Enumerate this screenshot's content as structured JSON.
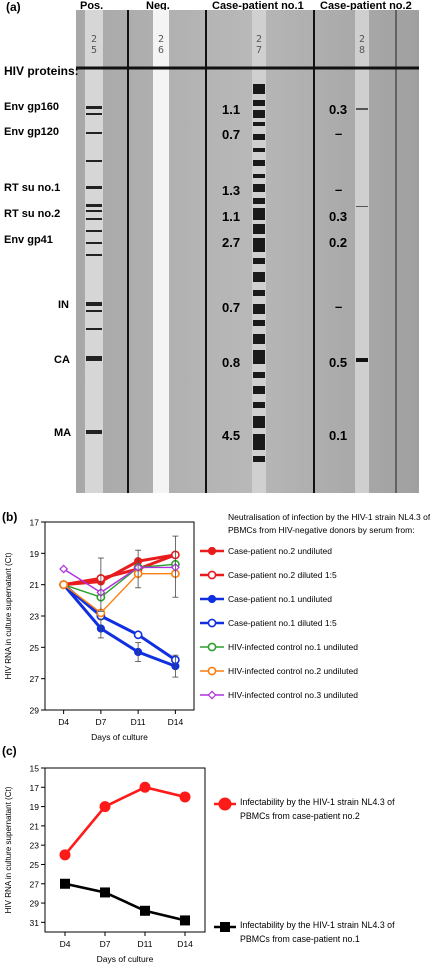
{
  "panel_a": {
    "letter": "(a)",
    "lane_headers": [
      "Pos.",
      "Neg.",
      "Case-patient no.1",
      "Case-patient no.2"
    ],
    "strip_numbers": [
      [
        "2",
        "5"
      ],
      [
        "2",
        "6"
      ],
      [
        "2",
        "7"
      ],
      [
        "2",
        "8"
      ]
    ],
    "proteins_title": "HIV proteins:",
    "proteins": [
      {
        "label": "Env gp160",
        "p1": "1.1",
        "p2": "0.3"
      },
      {
        "label": "Env gp120",
        "p1": "0.7",
        "p2": "–"
      },
      {
        "label": "RT su no.1",
        "p1": "1.3",
        "p2": "–"
      },
      {
        "label": "RT su no.2",
        "p1": "1.1",
        "p2": "0.3"
      },
      {
        "label": "Env gp41",
        "p1": "2.7",
        "p2": "0.2"
      },
      {
        "label": "IN",
        "p1": "0.7",
        "p2": "–"
      },
      {
        "label": "CA",
        "p1": "0.8",
        "p2": "0.5"
      },
      {
        "label": "MA",
        "p1": "4.5",
        "p2": "0.1"
      }
    ]
  },
  "panel_b": {
    "letter": "(b)",
    "legend_title": [
      "Neutralisation of infection by the HIV-1 strain NL4.3 of",
      "PBMCs from HIV-negative donors by serum from:"
    ],
    "chart_data": {
      "type": "line",
      "categories": [
        "D4",
        "D7",
        "D11",
        "D14"
      ],
      "xlabel": "Days of culture",
      "ylabel": "HIV RNA in culture supernatant (Ct)",
      "ylim": [
        17,
        29
      ],
      "y_inverted": true,
      "yticks": [
        "17",
        "19",
        "21",
        "23",
        "25",
        "27",
        "29"
      ],
      "legend_placement": "right",
      "series": [
        {
          "name": "Case-patient no.2 undiluted",
          "values": [
            21,
            20.8,
            19.5,
            19.1
          ],
          "color": "#e81c1c",
          "marker": "filled",
          "thick": true
        },
        {
          "name": "Case-patient no.2 diluted 1:5",
          "values": [
            21,
            20.6,
            20,
            19.1
          ],
          "color": "#e81c1c",
          "marker": "open",
          "thick": true
        },
        {
          "name": "Case-patient no.1 undiluted",
          "values": [
            21,
            23.8,
            25.3,
            26.2
          ],
          "color": "#1030e0",
          "marker": "filled",
          "thick": true
        },
        {
          "name": "Case-patient no.1 diluted 1:5",
          "values": [
            21,
            23,
            24.2,
            25.8
          ],
          "color": "#1030e0",
          "marker": "open",
          "thick": true
        },
        {
          "name": "HIV-infected control no.1 undiluted",
          "values": [
            21,
            21.8,
            19.9,
            19.7
          ],
          "color": "#2ca02c",
          "marker": "open",
          "thick": false
        },
        {
          "name": "HIV-infected control no.2 undiluted",
          "values": [
            21,
            22.8,
            20.3,
            20.3
          ],
          "color": "#ff7f0e",
          "marker": "open",
          "thick": false
        },
        {
          "name": "HIV-infected control no.3 undiluted",
          "values": [
            20,
            21.5,
            19.9,
            19.9
          ],
          "color": "#b030e0",
          "marker": "diamond",
          "thick": false
        }
      ]
    }
  },
  "panel_c": {
    "letter": "(c)",
    "chart_data": {
      "type": "line",
      "categories": [
        "D4",
        "D7",
        "D11",
        "D14"
      ],
      "xlabel": "Days of culture",
      "ylabel": "HIV RNA in culture supernatant (Ct)",
      "ylim": [
        15,
        32
      ],
      "y_inverted": true,
      "yticks": [
        "15",
        "17",
        "19",
        "21",
        "23",
        "25",
        "27",
        "29",
        "31"
      ],
      "legend_placement": "right",
      "series": [
        {
          "name": "Infectability by the HIV-1 strain NL4.3 of PBMCs from case-patient no.2",
          "name_lines": [
            "Infectability by the HIV-1 strain NL4.3 of",
            "PBMCs from case-patient no.2"
          ],
          "values": [
            24,
            19,
            17,
            18
          ],
          "color": "#ff1a1a",
          "marker": "circle"
        },
        {
          "name": "Infectability by the HIV-1 strain NL4.3 of PBMCs from case-patient no.1",
          "name_lines": [
            "Infectability by the HIV-1 strain NL4.3 of",
            "PBMCs from case-patient no.1"
          ],
          "values": [
            27,
            27.9,
            29.8,
            30.8
          ],
          "color": "#000000",
          "marker": "square"
        }
      ]
    }
  }
}
